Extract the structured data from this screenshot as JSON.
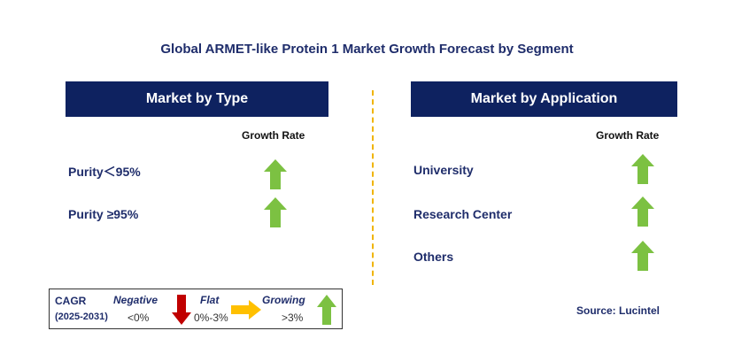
{
  "title": "Global ARMET-like Protein 1 Market Growth Forecast by Segment",
  "colors": {
    "header_bg": "#0e2260",
    "text": "#1f2d6b",
    "growing": "#7cc142",
    "negative": "#c00000",
    "flat": "#ffc000",
    "divider": "#f0b400"
  },
  "type_panel": {
    "header": "Market by Type",
    "column_label": "Growth Rate",
    "rows": [
      {
        "label": "Purity＜95%",
        "growth": "growing"
      },
      {
        "label": "Purity ≥95%",
        "growth": "growing"
      }
    ]
  },
  "application_panel": {
    "header": "Market by Application",
    "column_label": "Growth Rate",
    "rows": [
      {
        "label": "University",
        "growth": "growing"
      },
      {
        "label": "Research Center",
        "growth": "growing"
      },
      {
        "label": "Others",
        "growth": "growing"
      }
    ]
  },
  "legend": {
    "title_line1": "CAGR",
    "title_line2": "(2025-2031)",
    "negative_label": "Negative",
    "negative_range": "<0%",
    "flat_label": "Flat",
    "flat_range": "0%-3%",
    "growing_label": "Growing",
    "growing_range": ">3%"
  },
  "source": "Source: Lucintel"
}
